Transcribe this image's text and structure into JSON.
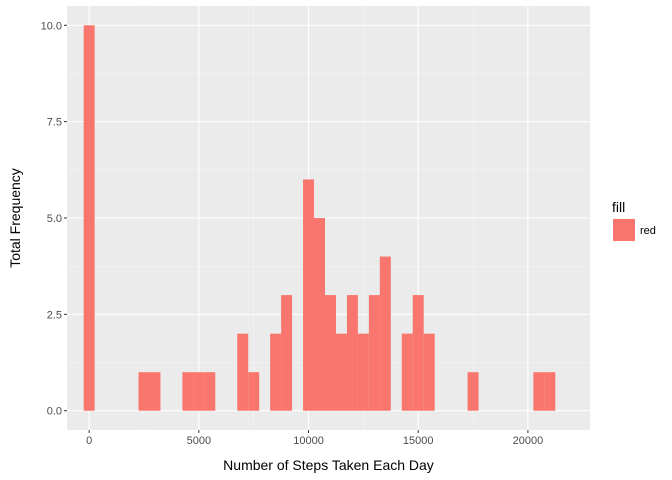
{
  "chart_data": {
    "type": "bar",
    "title": "",
    "xlabel": "Number of Steps Taken Each Day",
    "ylabel": "Total Frequency",
    "xlim": [
      -1010,
      22830
    ],
    "ylim": [
      -0.5,
      10.5
    ],
    "x_ticks": [
      0,
      5000,
      10000,
      15000,
      20000
    ],
    "x_tick_labels": [
      "0",
      "5000",
      "10000",
      "15000",
      "20000"
    ],
    "y_ticks": [
      0,
      2.5,
      5,
      7.5,
      10
    ],
    "y_tick_labels": [
      "0.0",
      "2.5",
      "5.0",
      "7.5",
      "10.0"
    ],
    "grid": true,
    "bin_width": 500,
    "bins": [
      {
        "x0": -250,
        "x1": 250,
        "count": 10
      },
      {
        "x0": 2250,
        "x1": 2750,
        "count": 1
      },
      {
        "x0": 2750,
        "x1": 3250,
        "count": 1
      },
      {
        "x0": 4250,
        "x1": 4750,
        "count": 1
      },
      {
        "x0": 4750,
        "x1": 5250,
        "count": 1
      },
      {
        "x0": 5250,
        "x1": 5750,
        "count": 1
      },
      {
        "x0": 6750,
        "x1": 7250,
        "count": 2
      },
      {
        "x0": 7250,
        "x1": 7750,
        "count": 1
      },
      {
        "x0": 8250,
        "x1": 8750,
        "count": 2
      },
      {
        "x0": 8750,
        "x1": 9250,
        "count": 3
      },
      {
        "x0": 9750,
        "x1": 10250,
        "count": 6
      },
      {
        "x0": 10250,
        "x1": 10750,
        "count": 5
      },
      {
        "x0": 10750,
        "x1": 11250,
        "count": 3
      },
      {
        "x0": 11250,
        "x1": 11750,
        "count": 2
      },
      {
        "x0": 11750,
        "x1": 12250,
        "count": 3
      },
      {
        "x0": 12250,
        "x1": 12750,
        "count": 2
      },
      {
        "x0": 12750,
        "x1": 13250,
        "count": 3
      },
      {
        "x0": 13250,
        "x1": 13750,
        "count": 4
      },
      {
        "x0": 14250,
        "x1": 14750,
        "count": 2
      },
      {
        "x0": 14750,
        "x1": 15250,
        "count": 3
      },
      {
        "x0": 15250,
        "x1": 15750,
        "count": 2
      },
      {
        "x0": 17250,
        "x1": 17750,
        "count": 1
      },
      {
        "x0": 20250,
        "x1": 20750,
        "count": 1
      },
      {
        "x0": 20750,
        "x1": 21250,
        "count": 1
      }
    ],
    "legend": {
      "title": "fill",
      "entries": [
        "red"
      ],
      "position": "right"
    },
    "colors": {
      "bar_fill": "#F8766D",
      "panel_background": "#EBEBEB",
      "grid_major": "#FFFFFF",
      "grid_minor": "#F5F5F5"
    }
  }
}
